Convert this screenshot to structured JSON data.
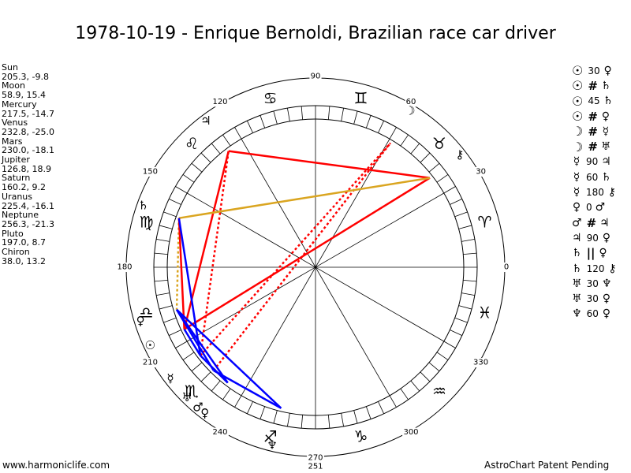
{
  "title": "1978-10-19 - Enrique Bernoldi, Brazilian race car driver",
  "positions": [
    {
      "name": "Sun",
      "value": "205.3, -9.8"
    },
    {
      "name": "Moon",
      "value": "58.9, 15.4"
    },
    {
      "name": "Mercury",
      "value": "217.5, -14.7"
    },
    {
      "name": "Venus",
      "value": "232.8, -25.0"
    },
    {
      "name": "Mars",
      "value": "230.0, -18.1"
    },
    {
      "name": "Jupiter",
      "value": "126.8, 18.9"
    },
    {
      "name": "Saturn",
      "value": "160.2, 9.2"
    },
    {
      "name": "Uranus",
      "value": "225.4, -16.1"
    },
    {
      "name": "Neptune",
      "value": "256.3, -21.3"
    },
    {
      "name": "Pluto",
      "value": "197.0, 8.7"
    },
    {
      "name": "Chiron",
      "value": "38.0, 13.2"
    }
  ],
  "aspects": [
    {
      "p1": "☉",
      "a": "30",
      "p2": "♀"
    },
    {
      "p1": "☉",
      "a": "#",
      "p2": "♄"
    },
    {
      "p1": "☉",
      "a": "45",
      "p2": "♄"
    },
    {
      "p1": "☉",
      "a": "#",
      "p2": "♀"
    },
    {
      "p1": "☽",
      "a": "#",
      "p2": "☿"
    },
    {
      "p1": "☽",
      "a": "#",
      "p2": "♅"
    },
    {
      "p1": "☿",
      "a": "90",
      "p2": "♃"
    },
    {
      "p1": "☿",
      "a": "60",
      "p2": "♄"
    },
    {
      "p1": "☿",
      "a": "180",
      "p2": "⚷"
    },
    {
      "p1": "♀",
      "a": "0",
      "p2": "♂"
    },
    {
      "p1": "♂",
      "a": "#",
      "p2": "♃"
    },
    {
      "p1": "♃",
      "a": "90",
      "p2": "♀"
    },
    {
      "p1": "♄",
      "a": "||",
      "p2": "♀"
    },
    {
      "p1": "♄",
      "a": "120",
      "p2": "⚷"
    },
    {
      "p1": "♅",
      "a": "30",
      "p2": "♆"
    },
    {
      "p1": "♅",
      "a": "30",
      "p2": "♀"
    },
    {
      "p1": "♆",
      "a": "60",
      "p2": "♀"
    }
  ],
  "degree_labels": [
    {
      "deg": 0,
      "text": "0"
    },
    {
      "deg": 30,
      "text": "30"
    },
    {
      "deg": 60,
      "text": "60"
    },
    {
      "deg": 90,
      "text": "90"
    },
    {
      "deg": 120,
      "text": "120"
    },
    {
      "deg": 150,
      "text": "150"
    },
    {
      "deg": 180,
      "text": "180"
    },
    {
      "deg": 210,
      "text": "210"
    },
    {
      "deg": 240,
      "text": "240"
    },
    {
      "deg": 270,
      "text": "270"
    },
    {
      "deg": 300,
      "text": "300"
    },
    {
      "deg": 330,
      "text": "330"
    }
  ],
  "marker_label": {
    "deg": 270,
    "text": "251"
  },
  "zodiac_signs": [
    {
      "deg": 15,
      "glyph": "♈"
    },
    {
      "deg": 45,
      "glyph": "♉"
    },
    {
      "deg": 75,
      "glyph": "♊"
    },
    {
      "deg": 105,
      "glyph": "♋"
    },
    {
      "deg": 135,
      "glyph": "♌"
    },
    {
      "deg": 165,
      "glyph": "♍"
    },
    {
      "deg": 195,
      "glyph": "♎"
    },
    {
      "deg": 225,
      "glyph": "♏"
    },
    {
      "deg": 255,
      "glyph": "♐"
    },
    {
      "deg": 285,
      "glyph": "♑"
    },
    {
      "deg": 315,
      "glyph": "♒"
    },
    {
      "deg": 345,
      "glyph": "♓"
    }
  ],
  "planets": [
    {
      "id": "sun",
      "glyph": "☉",
      "deg": 205.3,
      "bold": true
    },
    {
      "id": "moon",
      "glyph": "☽",
      "deg": 58.9
    },
    {
      "id": "mercury",
      "glyph": "☿",
      "deg": 217.5
    },
    {
      "id": "venus",
      "glyph": "♀",
      "deg": 232.8
    },
    {
      "id": "mars",
      "glyph": "♂",
      "deg": 230.0
    },
    {
      "id": "jupiter",
      "glyph": "♃",
      "deg": 126.8
    },
    {
      "id": "saturn",
      "glyph": "♄",
      "deg": 160.2
    },
    {
      "id": "uranus",
      "glyph": "♅",
      "deg": 225.4
    },
    {
      "id": "neptune",
      "glyph": "♆",
      "deg": 256.3
    },
    {
      "id": "pluto",
      "glyph": "♀",
      "deg": 197.0
    },
    {
      "id": "chiron",
      "glyph": "⚷",
      "deg": 38.0
    }
  ],
  "aspect_lines": [
    {
      "from": 205.3,
      "to": 38.0,
      "color": "#ff0000",
      "style": "solid"
    },
    {
      "from": 205.3,
      "to": 126.8,
      "color": "#ff0000",
      "style": "solid"
    },
    {
      "from": 126.8,
      "to": 38.0,
      "color": "#ff0000",
      "style": "solid"
    },
    {
      "from": 217.5,
      "to": 126.8,
      "color": "#ff0000",
      "style": "dotted"
    },
    {
      "from": 225.4,
      "to": 58.9,
      "color": "#ff0000",
      "style": "dotted"
    },
    {
      "from": 217.5,
      "to": 58.9,
      "color": "#ff0000",
      "style": "dotted"
    },
    {
      "from": 160.2,
      "to": 38.0,
      "color": "#daa520",
      "style": "solid"
    },
    {
      "from": 160.2,
      "to": 197.0,
      "color": "#daa520",
      "style": "dotted"
    },
    {
      "from": 160.2,
      "to": 205.3,
      "color": "#ff0000",
      "style": "solid"
    },
    {
      "from": 197.0,
      "to": 256.3,
      "color": "#0000ff",
      "style": "solid"
    },
    {
      "from": 225.4,
      "to": 256.3,
      "color": "#0000ff",
      "style": "solid"
    },
    {
      "from": 197.0,
      "to": 232.8,
      "color": "#0000ff",
      "style": "solid"
    },
    {
      "from": 197.0,
      "to": 225.4,
      "color": "#0000ff",
      "style": "solid"
    },
    {
      "from": 160.2,
      "to": 217.5,
      "color": "#0000ff",
      "style": "solid"
    },
    {
      "from": 217.5,
      "to": 232.8,
      "color": "#0000ff",
      "style": "solid"
    },
    {
      "from": 205.3,
      "to": 217.5,
      "color": "#0000ff",
      "style": "solid"
    }
  ],
  "footer_left": "www.harmoniclife.com",
  "footer_right": "AstroChart Patent Pending",
  "colors": {
    "red": "#ff0000",
    "blue": "#0000ff",
    "gold": "#daa520"
  }
}
